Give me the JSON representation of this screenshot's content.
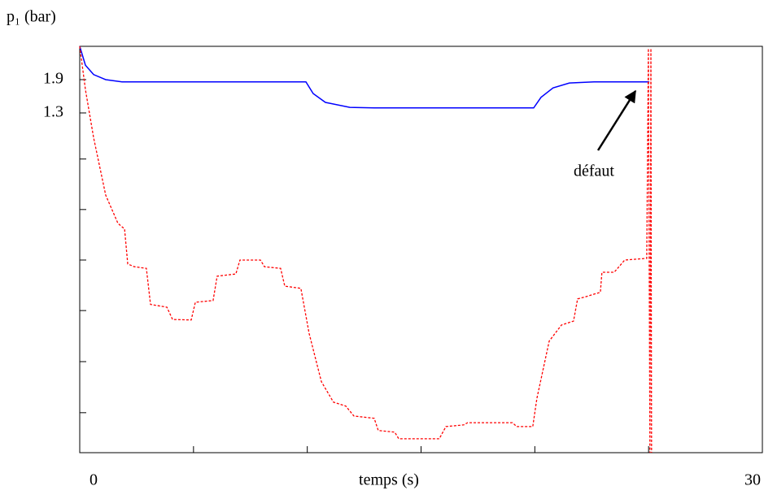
{
  "chart_data": {
    "type": "line",
    "ylabel": "p₁ (bar)",
    "xlabel": "temps (s)",
    "annotation": "défaut",
    "xlim": [
      0,
      30
    ],
    "xticks": [
      0,
      30
    ],
    "xminor": [
      5,
      10,
      15,
      20,
      25
    ],
    "ylim": [
      -4.82,
      2.5
    ],
    "yticks": [
      1.9,
      1.3
    ],
    "yminor": [
      0.47,
      -0.44,
      -1.35,
      -2.26,
      -3.18,
      -4.1
    ],
    "series": [
      {
        "color": "#0000ff",
        "dash": false,
        "x": [
          0,
          0.25,
          0.61,
          1.14,
          1.86,
          9.94,
          10.26,
          10.8,
          11.87,
          12.94,
          19.95,
          20.27,
          20.8,
          21.52,
          22.6,
          25.03
        ],
        "values": [
          2.5,
          2.16,
          1.99,
          1.9,
          1.86,
          1.86,
          1.65,
          1.49,
          1.4,
          1.39,
          1.39,
          1.58,
          1.75,
          1.84,
          1.86,
          1.86
        ]
      },
      {
        "color": "#ff0000",
        "dash": true,
        "x": [
          0,
          0.25,
          0.61,
          1.14,
          1.68,
          1.97,
          2.11,
          2.4,
          2.93,
          3.11,
          3.83,
          4.08,
          4.9,
          5.08,
          5.86,
          6.04,
          6.86,
          7.04,
          7.94,
          8.12,
          8.83,
          9.01,
          9.72,
          10.08,
          10.62,
          11.15,
          11.69,
          12.05,
          12.94,
          13.12,
          13.84,
          14.02,
          15.8,
          16.09,
          16.88,
          17.05,
          19.02,
          19.2,
          19.91,
          20.09,
          20.63,
          21.17,
          21.7,
          21.88,
          22.17,
          22.88,
          22.95,
          23.49,
          23.95,
          24.92,
          24.99,
          25.06,
          25.1,
          25.13
        ],
        "values": [
          2.5,
          1.72,
          0.85,
          -0.18,
          -0.69,
          -0.79,
          -1.42,
          -1.47,
          -1.5,
          -2.15,
          -2.2,
          -2.42,
          -2.43,
          -2.11,
          -2.08,
          -1.64,
          -1.6,
          -1.35,
          -1.35,
          -1.47,
          -1.5,
          -1.82,
          -1.86,
          -2.67,
          -3.54,
          -3.91,
          -3.98,
          -4.16,
          -4.2,
          -4.42,
          -4.45,
          -4.57,
          -4.57,
          -4.35,
          -4.32,
          -4.28,
          -4.28,
          -4.35,
          -4.35,
          -3.84,
          -2.81,
          -2.52,
          -2.45,
          -2.05,
          -2.02,
          -1.93,
          -1.57,
          -1.57,
          -1.35,
          -1.32,
          2.46,
          -4.82,
          2.46,
          -4.82
        ]
      }
    ]
  }
}
